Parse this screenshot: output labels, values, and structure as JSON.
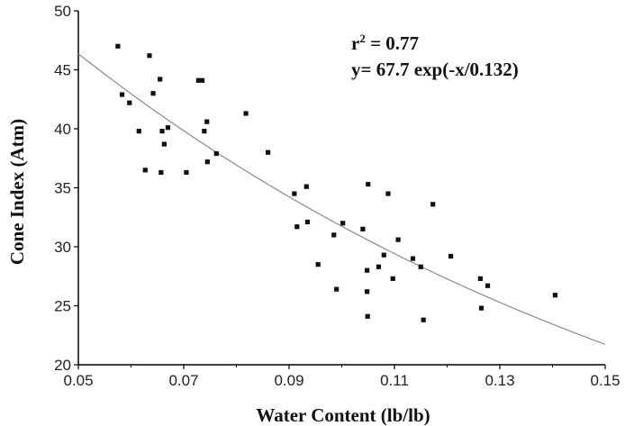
{
  "chart_data": {
    "type": "scatter",
    "xlabel": "Water Content (lb/lb)",
    "ylabel": "Cone Index (Atm)",
    "xlim": [
      0.05,
      0.15
    ],
    "ylim": [
      20,
      50
    ],
    "x_ticks": [
      "0.05",
      "0.07",
      "0.09",
      "0.11",
      "0.13",
      "0.15"
    ],
    "y_ticks": [
      "20",
      "25",
      "30",
      "35",
      "40",
      "45",
      "50"
    ],
    "grid": false,
    "annotations": {
      "r2_base": "r",
      "r2_sup": "2",
      "r2_value": " = 0.77",
      "equation": "y= 67.7 exp(-x/0.132)"
    },
    "fit": {
      "type": "exponential",
      "a": 67.7,
      "b": 0.132
    },
    "points": [
      [
        0.0575,
        47.0
      ],
      [
        0.0583,
        42.9
      ],
      [
        0.0597,
        42.2
      ],
      [
        0.0615,
        39.8
      ],
      [
        0.0627,
        36.5
      ],
      [
        0.0635,
        46.2
      ],
      [
        0.0642,
        43.0
      ],
      [
        0.0655,
        44.2
      ],
      [
        0.0657,
        36.3
      ],
      [
        0.0659,
        39.8
      ],
      [
        0.0663,
        38.7
      ],
      [
        0.067,
        40.1
      ],
      [
        0.0705,
        36.3
      ],
      [
        0.0728,
        44.1
      ],
      [
        0.0735,
        44.1
      ],
      [
        0.0739,
        39.8
      ],
      [
        0.0744,
        40.6
      ],
      [
        0.0745,
        37.2
      ],
      [
        0.0762,
        37.9
      ],
      [
        0.0818,
        41.3
      ],
      [
        0.086,
        38.0
      ],
      [
        0.091,
        34.5
      ],
      [
        0.0915,
        31.7
      ],
      [
        0.0933,
        35.1
      ],
      [
        0.0935,
        32.1
      ],
      [
        0.0955,
        28.5
      ],
      [
        0.0985,
        31.0
      ],
      [
        0.099,
        26.4
      ],
      [
        0.1002,
        32.0
      ],
      [
        0.104,
        31.5
      ],
      [
        0.1048,
        28.0
      ],
      [
        0.1048,
        26.2
      ],
      [
        0.1049,
        24.1
      ],
      [
        0.105,
        35.3
      ],
      [
        0.107,
        28.3
      ],
      [
        0.108,
        29.3
      ],
      [
        0.1088,
        34.5
      ],
      [
        0.1097,
        27.3
      ],
      [
        0.1107,
        30.6
      ],
      [
        0.1135,
        29.0
      ],
      [
        0.115,
        28.3
      ],
      [
        0.1155,
        23.8
      ],
      [
        0.1173,
        33.6
      ],
      [
        0.1207,
        29.2
      ],
      [
        0.1263,
        27.3
      ],
      [
        0.1265,
        24.8
      ],
      [
        0.1277,
        26.7
      ],
      [
        0.1405,
        25.9
      ]
    ]
  }
}
